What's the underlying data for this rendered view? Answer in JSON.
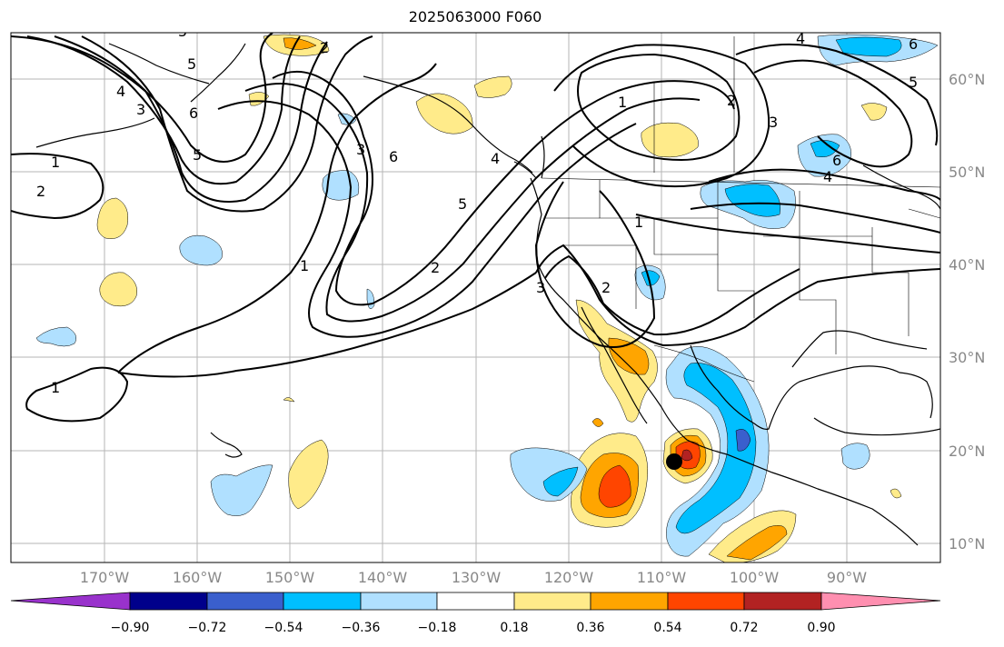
{
  "title": "2025063000 F060",
  "lat_labels": [
    "60°N",
    "50°N",
    "40°N",
    "30°N",
    "20°N",
    "10°N"
  ],
  "lon_labels": [
    "170°W",
    "160°W",
    "150°W",
    "140°W",
    "130°W",
    "120°W",
    "110°W",
    "100°W",
    "90°W"
  ],
  "contour_labels": [
    "1",
    "2",
    "3",
    "4",
    "5",
    "6"
  ],
  "colorbar": {
    "ticks": [
      "−0.90",
      "−0.72",
      "−0.54",
      "−0.36",
      "−0.18",
      "0.18",
      "0.36",
      "0.54",
      "0.72",
      "0.90"
    ],
    "colors": [
      "#9932cc",
      "#00008b",
      "#3a5fcd",
      "#00bfff",
      "#b0e0ff",
      "#ffffff",
      "#ffeb8a",
      "#ffa500",
      "#ff4500",
      "#b22222",
      "#ff8fb0"
    ]
  },
  "marker": {
    "label": "storm-center"
  }
}
